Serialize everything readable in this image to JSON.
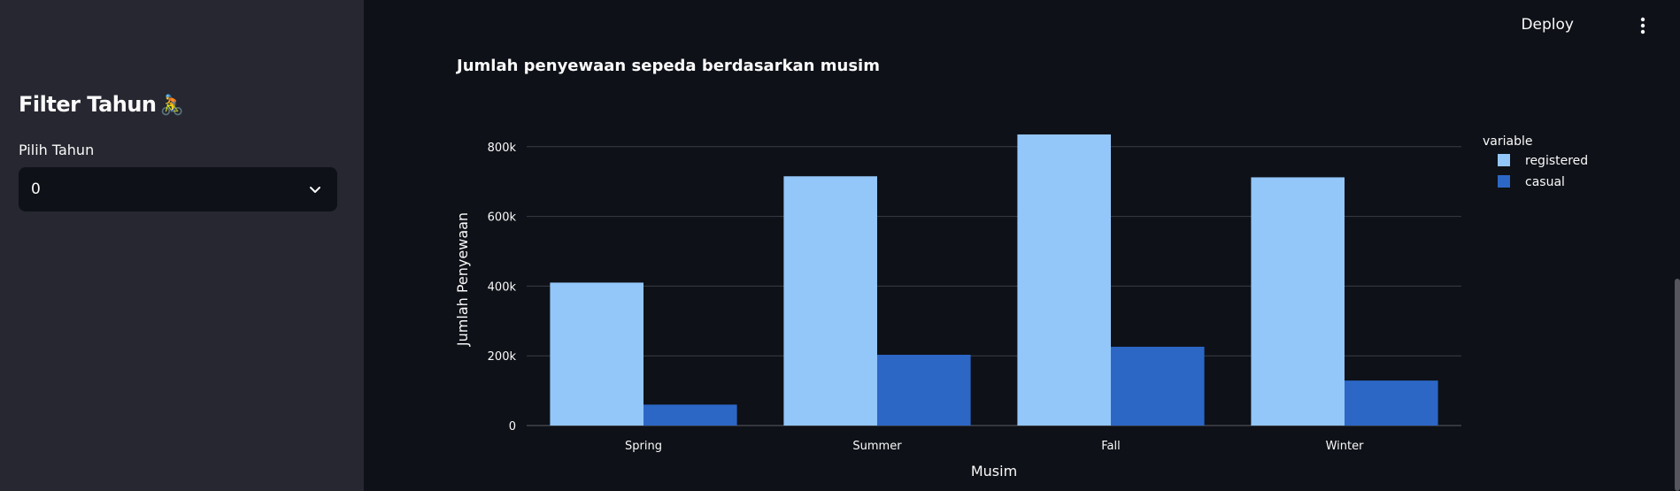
{
  "sidebar": {
    "title": "Filter Tahun",
    "title_emoji": "🚴",
    "select_label": "Pilih Tahun",
    "select_value": "0"
  },
  "header": {
    "deploy_label": "Deploy"
  },
  "colors": {
    "registered": "#93c6f9",
    "casual": "#2c67c6",
    "grid": "#3a3d46"
  },
  "chart_data": {
    "type": "bar",
    "title": "Jumlah penyewaan sepeda berdasarkan musim",
    "xlabel": "Musim",
    "ylabel": "Jumlah Penyewaan",
    "categories": [
      "Spring",
      "Summer",
      "Fall",
      "Winter"
    ],
    "ylim": [
      0,
      840000
    ],
    "yticks": [
      0,
      200000,
      400000,
      600000,
      800000
    ],
    "ytick_labels": [
      "0",
      "200k",
      "400k",
      "600k",
      "800k"
    ],
    "legend_title": "variable",
    "legend_position": "top-right",
    "grid": true,
    "series": [
      {
        "name": "registered",
        "values": [
          410000,
          715000,
          835000,
          712000
        ]
      },
      {
        "name": "casual",
        "values": [
          60000,
          203000,
          226000,
          129000
        ]
      }
    ]
  }
}
